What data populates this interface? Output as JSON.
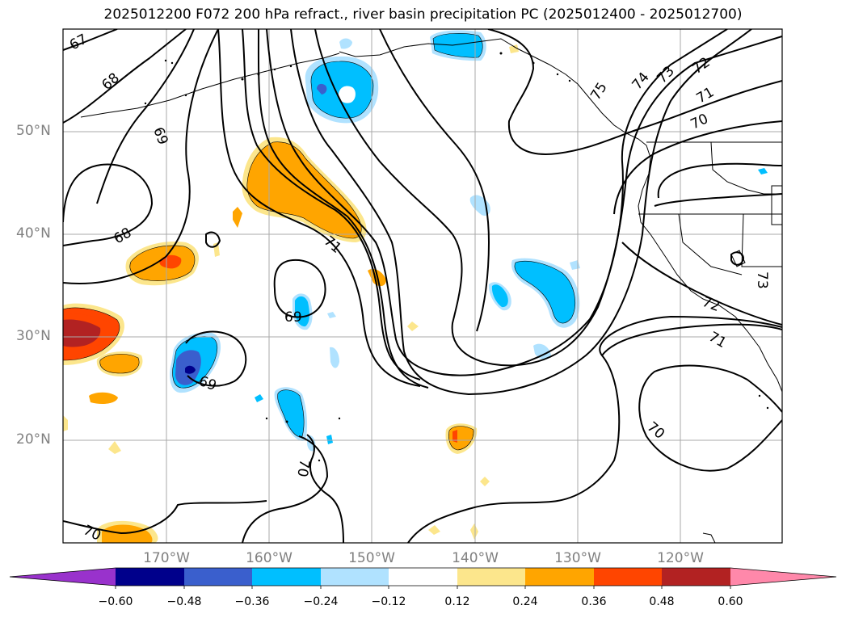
{
  "title": "2025012200 F072 200 hPa refract., river basin precipitation PC (2025012400 - 2025012700)",
  "lat_labels": [
    "50°N",
    "40°N",
    "30°N",
    "20°N"
  ],
  "lon_labels": [
    "170°W",
    "160°W",
    "150°W",
    "140°W",
    "130°W",
    "120°W"
  ],
  "contour_labels": [
    "67",
    "68",
    "69",
    "68",
    "71",
    "69",
    "69",
    "70",
    "70",
    "75",
    "74",
    "73",
    "72",
    "71",
    "70",
    "72",
    "71",
    "70",
    "73"
  ],
  "colorbar": {
    "ticks": [
      "−0.60",
      "−0.48",
      "−0.36",
      "−0.24",
      "−0.12",
      "0.12",
      "0.24",
      "0.36",
      "0.48",
      "0.60"
    ],
    "colors": [
      "#9932cc",
      "#00008b",
      "#3a5fcd",
      "#00bfff",
      "#b0e2ff",
      "#ffffff",
      "#fce68c",
      "#ffa500",
      "#ff4500",
      "#b22222",
      "#ff88aa"
    ]
  }
}
